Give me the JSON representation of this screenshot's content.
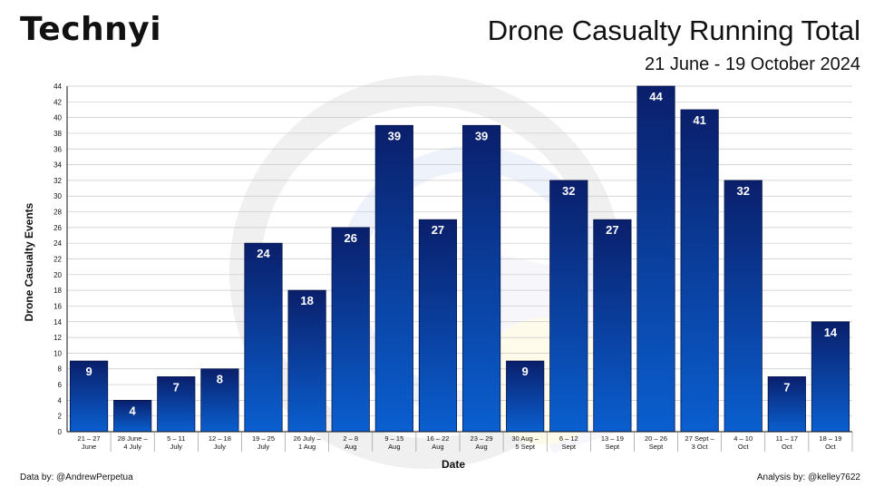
{
  "brand": {
    "logo_text": "Technyi"
  },
  "header": {
    "title": "Drone Casualty Running Total",
    "subtitle": "21 June - 19 October 2024"
  },
  "footer": {
    "data_credit": "Data by: @AndrewPerpetua",
    "analysis_credit": "Analysis by: @kelley7622"
  },
  "colors": {
    "bar_top": "#0a1f6b",
    "bar_bottom": "#0a5fd0",
    "grid": "#c8c8c8",
    "label": "#ffffff"
  },
  "chart_data": {
    "type": "bar",
    "title": "Drone Casualty Running Total",
    "subtitle": "21 June - 19 October 2024",
    "xlabel": "Date",
    "ylabel": "Drone Casualty Events",
    "ylim": [
      0,
      44
    ],
    "yticks": [
      0,
      2,
      4,
      6,
      8,
      10,
      12,
      14,
      16,
      18,
      20,
      22,
      24,
      26,
      28,
      30,
      32,
      34,
      36,
      38,
      40,
      42,
      44
    ],
    "grid": true,
    "categories": [
      [
        "21 – 27",
        "June"
      ],
      [
        "28 June –",
        "4 July"
      ],
      [
        "5 – 11",
        "July"
      ],
      [
        "12 – 18",
        "July"
      ],
      [
        "19 – 25",
        "July"
      ],
      [
        "26 July –",
        "1 Aug"
      ],
      [
        "2 – 8",
        "Aug"
      ],
      [
        "9 – 15",
        "Aug"
      ],
      [
        "16 – 22",
        "Aug"
      ],
      [
        "23 – 29",
        "Aug"
      ],
      [
        "30 Aug –",
        "5 Sept"
      ],
      [
        "6 – 12",
        "Sept"
      ],
      [
        "13 – 19",
        "Sept"
      ],
      [
        "20 – 26",
        "Sept"
      ],
      [
        "27 Sept –",
        "3 Oct"
      ],
      [
        "4 – 10",
        "Oct"
      ],
      [
        "11 – 17",
        "Oct"
      ],
      [
        "18 – 19",
        "Oct"
      ]
    ],
    "values": [
      9,
      4,
      7,
      8,
      24,
      18,
      26,
      39,
      27,
      39,
      9,
      32,
      27,
      44,
      41,
      32,
      7,
      14
    ],
    "value_labels": [
      "9",
      "4",
      "7",
      "8",
      "24",
      "18",
      "26",
      "39",
      "27",
      "39",
      "9",
      "32",
      "27",
      "44",
      "41",
      "32",
      "7",
      "14"
    ]
  }
}
